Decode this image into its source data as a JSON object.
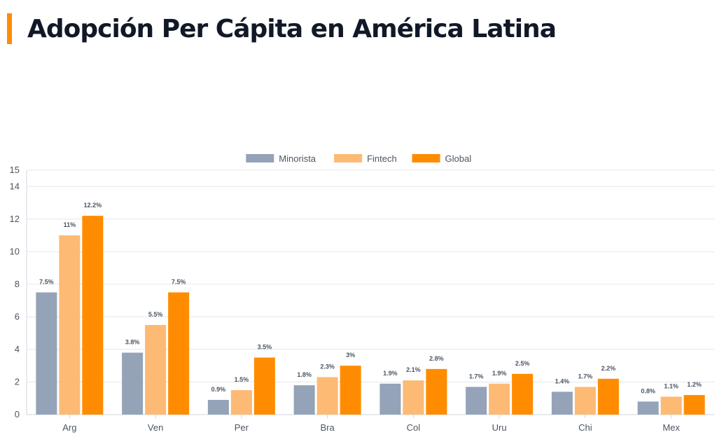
{
  "page": {
    "title": "Adopción Per Cápita en América Latina",
    "accent_color": "#FF8C00"
  },
  "chart_data": {
    "type": "bar",
    "title": "",
    "xlabel": "",
    "ylabel": "",
    "ylim": [
      0,
      15
    ],
    "yticks": [
      0,
      2,
      4,
      6,
      8,
      10,
      12,
      14,
      15
    ],
    "grid": true,
    "legend_position": "top-center",
    "categories": [
      "Arg",
      "Ven",
      "Per",
      "Bra",
      "Col",
      "Uru",
      "Chi",
      "Mex"
    ],
    "series": [
      {
        "name": "Minorista",
        "color": "#94A3B8",
        "values": [
          7.5,
          3.8,
          0.9,
          1.8,
          1.9,
          1.7,
          1.4,
          0.8
        ],
        "labels": [
          "7.5%",
          "3.8%",
          "0.9%",
          "1.8%",
          "1.9%",
          "1.7%",
          "1.4%",
          "0.8%"
        ]
      },
      {
        "name": "Fintech",
        "color": "#FDBA74",
        "values": [
          11,
          5.5,
          1.5,
          2.3,
          2.1,
          1.9,
          1.7,
          1.1
        ],
        "labels": [
          "11%",
          "5.5%",
          "1.5%",
          "2.3%",
          "2.1%",
          "1.9%",
          "1.7%",
          "1.1%"
        ]
      },
      {
        "name": "Global",
        "color": "#FF8C00",
        "values": [
          12.2,
          7.5,
          3.5,
          3,
          2.8,
          2.5,
          2.2,
          1.2
        ],
        "labels": [
          "12.2%",
          "7.5%",
          "3.5%",
          "3%",
          "2.8%",
          "2.5%",
          "2.2%",
          "1.2%"
        ]
      }
    ]
  }
}
